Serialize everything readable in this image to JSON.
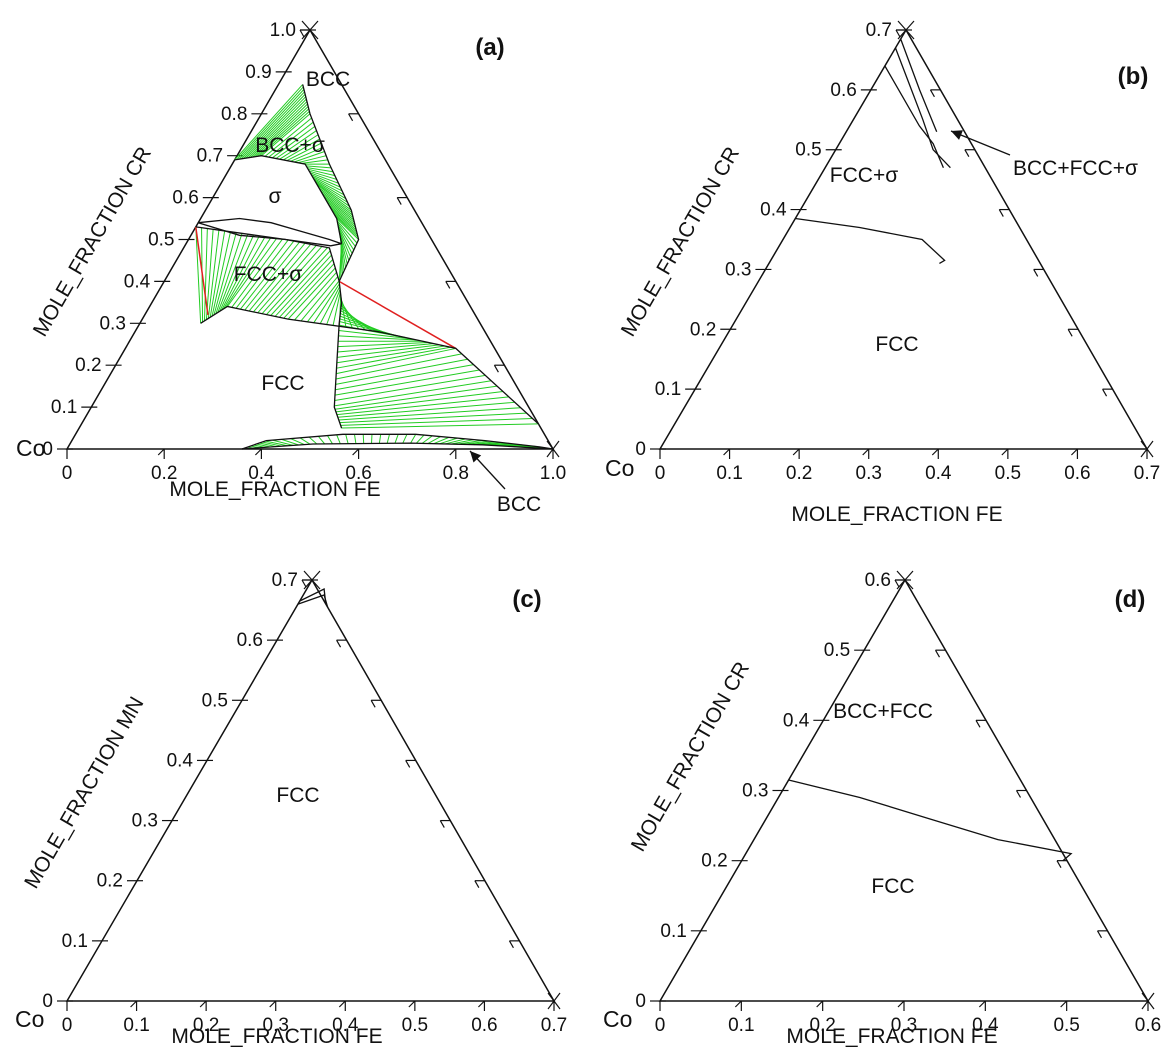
{
  "chart_data": [
    {
      "type": "ternary phase diagram",
      "panel_label": "(a)",
      "corner_label": "Co",
      "xlabel": "MOLE_FRACTION FE",
      "ylabel": "MOLE_FRACTION CR",
      "x_range": [
        0,
        1.0
      ],
      "y_range": [
        0,
        1.0
      ],
      "x_ticks": [
        "0",
        "0.2",
        "0.4",
        "0.6",
        "0.8",
        "1.0"
      ],
      "y_ticks": [
        "0",
        "0.1",
        "0.2",
        "0.3",
        "0.4",
        "0.5",
        "0.6",
        "0.7",
        "0.8",
        "0.9",
        "1.0"
      ],
      "regions": [
        "BCC",
        "BCC+σ",
        "σ",
        "FCC+σ",
        "FCC",
        "BCC"
      ],
      "annotations": [
        "BCC"
      ],
      "phase_boundaries": [
        {
          "name": "bcc-upper",
          "points": [
            [
              0.05,
              0.87
            ],
            [
              0.1,
              0.8
            ],
            [
              0.2,
              0.68
            ],
            [
              0.3,
              0.57
            ],
            [
              0.35,
              0.5
            ],
            [
              0.36,
              0.4
            ]
          ]
        },
        {
          "name": "bcc-lower",
          "points": [
            [
              0.0,
              0.69
            ],
            [
              0.05,
              0.7
            ],
            [
              0.15,
              0.68
            ],
            [
              0.2,
              0.63
            ],
            [
              0.28,
              0.55
            ],
            [
              0.32,
              0.49
            ]
          ]
        },
        {
          "name": "sigma-top",
          "points": [
            [
              0.0,
              0.54
            ],
            [
              0.08,
              0.55
            ],
            [
              0.15,
              0.54
            ],
            [
              0.22,
              0.52
            ],
            [
              0.29,
              0.5
            ],
            [
              0.32,
              0.49
            ]
          ]
        },
        {
          "name": "sigma-bottom",
          "points": [
            [
              0.0,
              0.54
            ],
            [
              0.1,
              0.51
            ],
            [
              0.2,
              0.5
            ],
            [
              0.3,
              0.485
            ],
            [
              0.32,
              0.49
            ]
          ]
        },
        {
          "name": "fcc-sigma-upper",
          "points": [
            [
              0.0,
              0.53
            ],
            [
              0.1,
              0.515
            ],
            [
              0.2,
              0.5
            ],
            [
              0.3,
              0.48
            ],
            [
              0.36,
              0.4
            ],
            [
              0.39,
              0.35
            ],
            [
              0.41,
              0.3
            ],
            [
              0.455,
              0.2
            ],
            [
              0.5,
              0.1
            ],
            [
              0.54,
              0.05
            ]
          ]
        },
        {
          "name": "fcc-sigma-lower",
          "points": [
            [
              0.125,
              0.3
            ],
            [
              0.16,
              0.34
            ],
            [
              0.3,
              0.31
            ],
            [
              0.5,
              0.28
            ],
            [
              0.68,
              0.24
            ],
            [
              0.94,
              0.06
            ]
          ]
        },
        {
          "name": "bcc-bottom-upper",
          "points": [
            [
              0.36,
              0.0
            ],
            [
              0.4,
              0.02
            ],
            [
              0.55,
              0.035
            ],
            [
              0.7,
              0.035
            ],
            [
              0.85,
              0.02
            ],
            [
              0.97,
              0.005
            ],
            [
              1.0,
              0.0
            ]
          ]
        },
        {
          "name": "bcc-bottom-lower",
          "points": [
            [
              0.36,
              0.0
            ],
            [
              0.5,
              0.012
            ],
            [
              0.7,
              0.014
            ],
            [
              0.85,
              0.01
            ],
            [
              1.0,
              0.0
            ]
          ]
        }
      ]
    },
    {
      "type": "ternary phase diagram",
      "panel_label": "(b)",
      "corner_label": "Co",
      "xlabel": "MOLE_FRACTION FE",
      "ylabel": "MOLE_FRACTION CR",
      "x_range": [
        0,
        0.7
      ],
      "y_range": [
        0,
        0.7
      ],
      "x_ticks": [
        "0",
        "0.1",
        "0.2",
        "0.3",
        "0.4",
        "0.5",
        "0.6",
        "0.7"
      ],
      "y_ticks": [
        "0",
        "0.1",
        "0.2",
        "0.3",
        "0.4",
        "0.5",
        "0.6",
        "0.7"
      ],
      "regions": [
        "FCC+σ",
        "FCC"
      ],
      "annotations": [
        "BCC+FCC+σ"
      ],
      "phase_boundaries": [
        {
          "name": "fcc-sigma",
          "points": [
            [
              0.0,
              0.385
            ],
            [
              0.1,
              0.37
            ],
            [
              0.2,
              0.35
            ],
            [
              0.25,
              0.315
            ],
            [
              0.245,
              0.31
            ]
          ]
        },
        {
          "name": "three-phase-a",
          "points": [
            [
              0.0,
              0.64
            ],
            [
              0.05,
              0.59
            ],
            [
              0.1,
              0.54
            ],
            [
              0.135,
              0.51
            ],
            [
              0.17,
              0.47
            ]
          ]
        },
        {
          "name": "three-phase-b",
          "points": [
            [
              0.0,
              0.67
            ],
            [
              0.05,
              0.61
            ],
            [
              0.1,
              0.55
            ],
            [
              0.14,
              0.5
            ],
            [
              0.18,
              0.47
            ]
          ]
        },
        {
          "name": "three-phase-c",
          "points": [
            [
              0.0,
              0.685
            ],
            [
              0.07,
              0.6
            ],
            [
              0.13,
              0.53
            ]
          ]
        }
      ]
    },
    {
      "type": "ternary phase diagram",
      "panel_label": "(c)",
      "corner_label": "Co",
      "xlabel": "MOLE_FRACTION FE",
      "ylabel": "MOLE_FRACTION MN",
      "x_range": [
        0,
        0.7
      ],
      "y_range": [
        0,
        0.7
      ],
      "x_ticks": [
        "0",
        "0.1",
        "0.2",
        "0.3",
        "0.4",
        "0.5",
        "0.6",
        "0.7"
      ],
      "y_ticks": [
        "0",
        "0.1",
        "0.2",
        "0.3",
        "0.4",
        "0.5",
        "0.6",
        "0.7"
      ],
      "regions": [
        "FCC"
      ],
      "annotations": [],
      "phase_boundaries": [
        {
          "name": "corner-a",
          "points": [
            [
              0.0,
              0.66
            ],
            [
              0.03,
              0.675
            ],
            [
              0.045,
              0.655
            ]
          ]
        },
        {
          "name": "corner-b",
          "points": [
            [
              0.0,
              0.665
            ],
            [
              0.025,
              0.685
            ],
            [
              0.04,
              0.66
            ]
          ]
        }
      ]
    },
    {
      "type": "ternary phase diagram",
      "panel_label": "(d)",
      "corner_label": "Co",
      "xlabel": "MOLE_FRACTION FE",
      "ylabel": "MOLE_FRACTION CR",
      "x_range": [
        0,
        0.6
      ],
      "y_range": [
        0,
        0.6
      ],
      "x_ticks": [
        "0",
        "0.1",
        "0.2",
        "0.3",
        "0.4",
        "0.5",
        "0.6"
      ],
      "y_ticks": [
        "0",
        "0.1",
        "0.2",
        "0.3",
        "0.4",
        "0.5",
        "0.6"
      ],
      "regions": [
        "BCC+FCC",
        "FCC"
      ],
      "annotations": [],
      "phase_boundaries": [
        {
          "name": "fcc-bcc",
          "points": [
            [
              0.0,
              0.315
            ],
            [
              0.1,
              0.29
            ],
            [
              0.2,
              0.26
            ],
            [
              0.3,
              0.23
            ],
            [
              0.4,
              0.21
            ],
            [
              0.395,
              0.2
            ]
          ]
        }
      ]
    }
  ]
}
